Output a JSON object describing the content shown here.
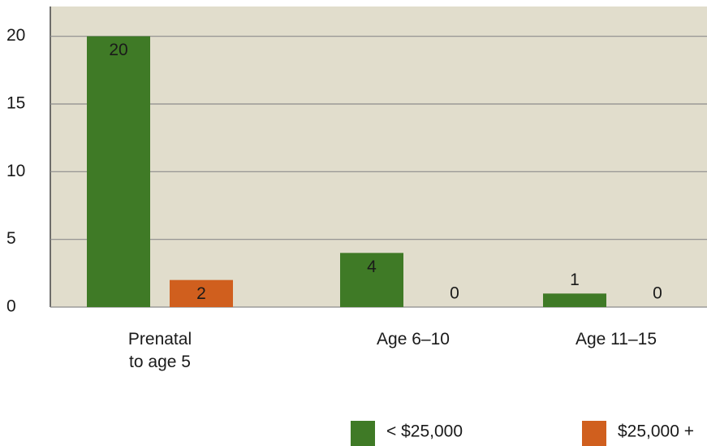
{
  "chart_data": {
    "type": "bar",
    "categories": [
      "Prenatal\nto age 5",
      "Age 6–10",
      "Age 11–15"
    ],
    "series": [
      {
        "name": "< $25,000",
        "color": "#3f7a26",
        "values": [
          20,
          4,
          1
        ]
      },
      {
        "name": "$25,000 +",
        "color": "#d05f1e",
        "values": [
          2,
          0,
          0
        ]
      }
    ],
    "ylim": [
      0,
      22.2
    ],
    "yticks": [
      0,
      5,
      10,
      15,
      20
    ],
    "grid": true,
    "legend": "bottom"
  }
}
